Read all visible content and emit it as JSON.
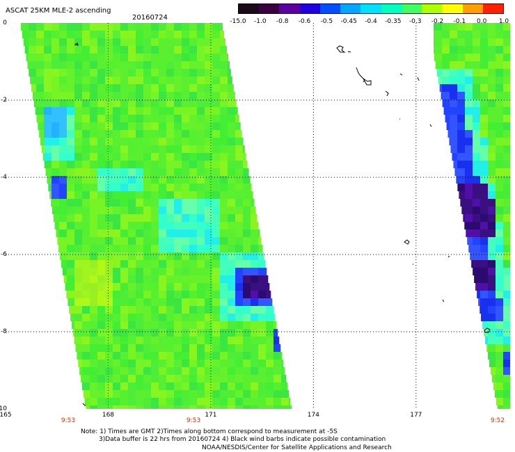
{
  "header": {
    "title": "ASCAT 25KM MLE-2 ascending",
    "date": "20160724"
  },
  "colorbar": {
    "labels": [
      "-15.0",
      "-1.0",
      "-0.8",
      "-0.6",
      "-0.5",
      "-0.45",
      "-0.4",
      "-0.35",
      "-0.3",
      "-0.2",
      "-0.1",
      "0.0",
      "1.0"
    ],
    "colors": [
      "#1a0a1a",
      "#3a0040",
      "#5a00a0",
      "#2000e0",
      "#0050ff",
      "#00a8ff",
      "#00e0ff",
      "#00ffc0",
      "#40ff60",
      "#b0ff00",
      "#ffff00",
      "#ffa000",
      "#ff2000"
    ]
  },
  "map": {
    "lat_labels": [
      "0",
      "-2",
      "-4",
      "-6",
      "-8",
      "-10"
    ],
    "lon_labels": [
      "165",
      "168",
      "171",
      "174",
      "177"
    ],
    "times": [
      "9:53",
      "9:53",
      "9:52"
    ]
  },
  "footer": {
    "note_line1": "Note: 1) Times are GMT 2)Times along bottom correspond to measurement at -5S",
    "note_line2": "3)Data buffer is 22 hrs from 20160724 4) Black wind barbs indicate possible contamination",
    "credit": "NOAA/NESDIS/Center for Satellite Applications and Research"
  }
}
